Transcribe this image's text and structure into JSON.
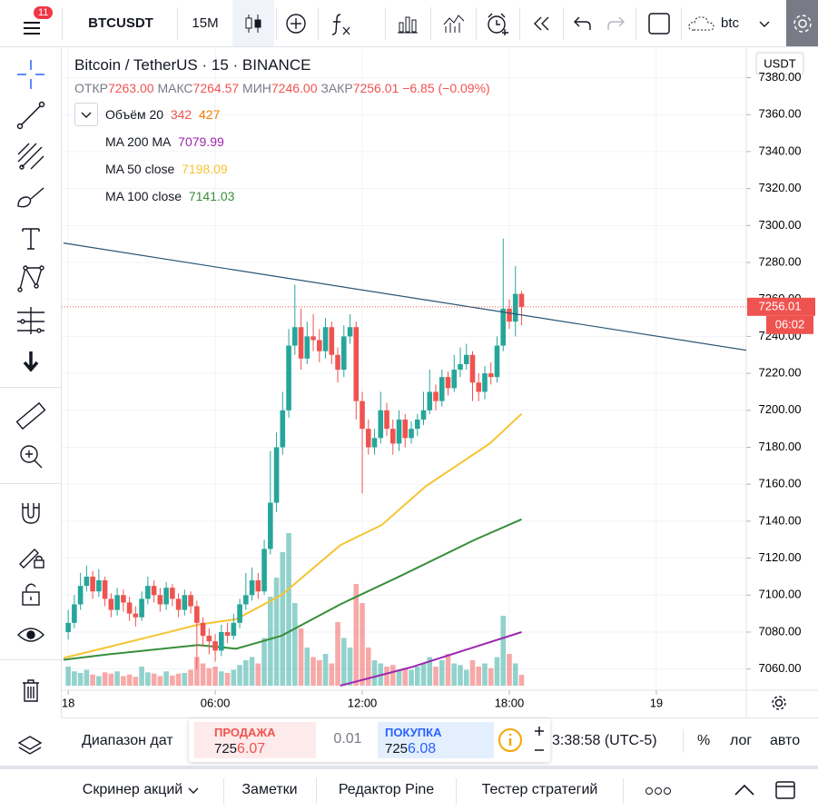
{
  "toolbar": {
    "badge": "11",
    "symbol": "BTCUSDT",
    "interval": "15М",
    "search": "btc"
  },
  "chart_data": {
    "type": "candlestick",
    "title": "Bitcoin / TetherUS · 15 · BINANCE",
    "ohlc_labels": [
      "ОТКР",
      "МАКС",
      "МИН",
      "ЗАКР"
    ],
    "ohlc_values": [
      "7263.00",
      "7264.57",
      "7246.00",
      "7256.01"
    ],
    "change": "−6.85 (−0.09%)",
    "currency": "USDT",
    "countdown": "06:02",
    "up_color": "#26a69a",
    "down_color": "#ef5350",
    "grid": true,
    "x": [
      0,
      0.25,
      0.5,
      0.75,
      1,
      1.25,
      1.5,
      1.75,
      2,
      2.25,
      2.5,
      2.75,
      3,
      3.25,
      3.5,
      3.75,
      4,
      4.25,
      4.5,
      4.75,
      5,
      5.25,
      5.5,
      5.75,
      6,
      6.25,
      6.5,
      6.75,
      7,
      7.25,
      7.5,
      7.75,
      8,
      8.25,
      8.5,
      8.75,
      9,
      9.25,
      9.5,
      9.75,
      10,
      10.25,
      10.5,
      10.75,
      11,
      11.25,
      11.5,
      11.75,
      12,
      12.25,
      12.5,
      12.75,
      13,
      13.25,
      13.5,
      13.75,
      14,
      14.25,
      14.5,
      14.75,
      15,
      15.25,
      15.5,
      15.75,
      16,
      16.25,
      16.5,
      16.75,
      17,
      17.25,
      17.5,
      17.75,
      18,
      18.25,
      18.5
    ],
    "open": [
      7080,
      7085,
      7095,
      7105,
      7110,
      7102,
      7108,
      7098,
      7092,
      7100,
      7096,
      7090,
      7088,
      7098,
      7105,
      7100,
      7095,
      7104,
      7098,
      7092,
      7100,
      7094,
      7085,
      7078,
      7075,
      7070,
      7080,
      7078,
      7085,
      7095,
      7100,
      7108,
      7102,
      7125,
      7150,
      7180,
      7200,
      7235,
      7245,
      7228,
      7240,
      7238,
      7232,
      7245,
      7230,
      7222,
      7240,
      7245,
      7205,
      7190,
      7180,
      7185,
      7200,
      7190,
      7182,
      7195,
      7185,
      7190,
      7195,
      7200,
      7210,
      7205,
      7218,
      7212,
      7222,
      7225,
      7230,
      7215,
      7210,
      7220,
      7218,
      7235,
      7255,
      7248,
      7263
    ],
    "high": [
      7092,
      7100,
      7112,
      7116,
      7113,
      7114,
      7110,
      7101,
      7104,
      7103,
      7099,
      7094,
      7102,
      7110,
      7108,
      7104,
      7107,
      7106,
      7101,
      7103,
      7102,
      7097,
      7088,
      7082,
      7079,
      7084,
      7085,
      7090,
      7098,
      7112,
      7115,
      7112,
      7130,
      7178,
      7188,
      7210,
      7244,
      7268,
      7255,
      7248,
      7252,
      7244,
      7250,
      7248,
      7234,
      7246,
      7252,
      7248,
      7210,
      7195,
      7190,
      7210,
      7204,
      7195,
      7200,
      7198,
      7194,
      7198,
      7210,
      7222,
      7214,
      7222,
      7221,
      7230,
      7234,
      7236,
      7232,
      7220,
      7224,
      7226,
      7240,
      7293,
      7260,
      7278,
      7264.57
    ],
    "low": [
      7076,
      7082,
      7092,
      7102,
      7098,
      7099,
      7094,
      7088,
      7089,
      7091,
      7086,
      7083,
      7086,
      7095,
      7096,
      7091,
      7092,
      7094,
      7088,
      7089,
      7090,
      7060,
      7072,
      7068,
      7064,
      7067,
      7074,
      7076,
      7082,
      7092,
      7097,
      7098,
      7100,
      7122,
      7145,
      7176,
      7196,
      7230,
      7222,
      7225,
      7232,
      7226,
      7228,
      7225,
      7215,
      7218,
      7236,
      7195,
      7155,
      7176,
      7176,
      7182,
      7186,
      7176,
      7178,
      7180,
      7182,
      7186,
      7192,
      7198,
      7200,
      7202,
      7208,
      7210,
      7218,
      7222,
      7205,
      7205,
      7206,
      7214,
      7215,
      7232,
      7244,
      7240,
      7246
    ],
    "close": [
      7085,
      7095,
      7105,
      7110,
      7102,
      7108,
      7098,
      7092,
      7100,
      7096,
      7090,
      7088,
      7098,
      7105,
      7100,
      7095,
      7104,
      7098,
      7092,
      7100,
      7094,
      7085,
      7078,
      7075,
      7070,
      7080,
      7078,
      7085,
      7095,
      7100,
      7108,
      7102,
      7125,
      7150,
      7180,
      7200,
      7235,
      7245,
      7228,
      7240,
      7238,
      7232,
      7245,
      7230,
      7222,
      7240,
      7245,
      7205,
      7190,
      7180,
      7185,
      7200,
      7190,
      7182,
      7195,
      7185,
      7190,
      7195,
      7200,
      7210,
      7205,
      7218,
      7212,
      7222,
      7225,
      7230,
      7215,
      7210,
      7220,
      7218,
      7235,
      7255,
      7248,
      7263,
      7256.01
    ],
    "volume": {
      "name": "Объём 20",
      "ma": 427,
      "ma_color": "#f57c00",
      "ylim": [
        0,
        20000
      ],
      "values": [
        600,
        450,
        400,
        500,
        350,
        300,
        420,
        380,
        450,
        300,
        350,
        280,
        600,
        420,
        380,
        300,
        450,
        320,
        380,
        400,
        500,
        900,
        700,
        550,
        600,
        450,
        400,
        500,
        650,
        800,
        900,
        700,
        1500,
        2800,
        3400,
        4200,
        4800,
        2600,
        1800,
        1200,
        900,
        800,
        1000,
        700,
        2000,
        1500,
        1200,
        3200,
        2600,
        1200,
        800,
        700,
        600,
        650,
        500,
        550,
        500,
        600,
        700,
        900,
        600,
        800,
        1000,
        700,
        650,
        500,
        800,
        600,
        700,
        550,
        900,
        2200,
        1000,
        700,
        342
      ]
    },
    "series": [
      {
        "name": "MA 200 MA",
        "color": "#9c27b0",
        "x": [
          11.1,
          14,
          16.6,
          18.5
        ],
        "values": [
          7051,
          7061,
          7072,
          7079.99
        ]
      },
      {
        "name": "MA 50 close",
        "color": "#f5c431",
        "x": [
          -0.19,
          1.67,
          3.5,
          5.3,
          6.85,
          8.7,
          11.1,
          12.8,
          14.6,
          17.2,
          18.5
        ],
        "values": [
          7066,
          7072,
          7078,
          7084,
          7087,
          7100,
          7127,
          7138,
          7159,
          7182,
          7198.09
        ]
      },
      {
        "name": "MA 100 close",
        "color": "#388e3c",
        "x": [
          -0.19,
          1.67,
          5.3,
          6.85,
          8.7,
          11.1,
          13.5,
          16.6,
          18.5
        ],
        "values": [
          7065,
          7068,
          7073,
          7071,
          7078,
          7095,
          7110,
          7130,
          7141.03
        ]
      }
    ],
    "trendline": {
      "color": "#2a5674",
      "x": [
        -0.19,
        27.67
      ],
      "values": [
        7290.5,
        7232.5
      ]
    },
    "xlim": [
      -0.19,
      27.67
    ],
    "xticks": [
      {
        "value": 0,
        "label": "18"
      },
      {
        "value": 6,
        "label": "06:00"
      },
      {
        "value": 12,
        "label": "12:00"
      },
      {
        "value": 18,
        "label": "18:00"
      },
      {
        "value": 24,
        "label": "19"
      }
    ],
    "ylim": [
      7051,
      7395
    ],
    "yticks": [
      {
        "value": 7060,
        "label": "7060.00"
      },
      {
        "value": 7080,
        "label": "7080.00"
      },
      {
        "value": 7100,
        "label": "7100.00"
      },
      {
        "value": 7120,
        "label": "7120.00"
      },
      {
        "value": 7140,
        "label": "7140.00"
      },
      {
        "value": 7160,
        "label": "7160.00"
      },
      {
        "value": 7180,
        "label": "7180.00"
      },
      {
        "value": 7200,
        "label": "7200.00"
      },
      {
        "value": 7220,
        "label": "7220.00"
      },
      {
        "value": 7240,
        "label": "7240.00"
      },
      {
        "value": 7260,
        "label": "7260.00"
      },
      {
        "value": 7280,
        "label": "7280.00"
      },
      {
        "value": 7300,
        "label": "7300.00"
      },
      {
        "value": 7320,
        "label": "7320.00"
      },
      {
        "value": 7340,
        "label": "7340.00"
      },
      {
        "value": 7360,
        "label": "7360.00"
      },
      {
        "value": 7380,
        "label": "7380.00"
      }
    ]
  },
  "bottom": {
    "date_range": "Диапазон дат",
    "sell_label": "ПРОДАЖА",
    "sell_head": "725",
    "sell_tail": "6.07",
    "spread": "0.01",
    "buy_label": "ПОКУПКА",
    "buy_head": "725",
    "buy_tail": "6.08",
    "clock": "3:38:58 (UTC-5)",
    "percent": "%",
    "log": "лог",
    "auto": "авто"
  },
  "tabs": [
    "Скринер акций",
    "Заметки",
    "Редактор Pine",
    "Тестер стратегий"
  ]
}
